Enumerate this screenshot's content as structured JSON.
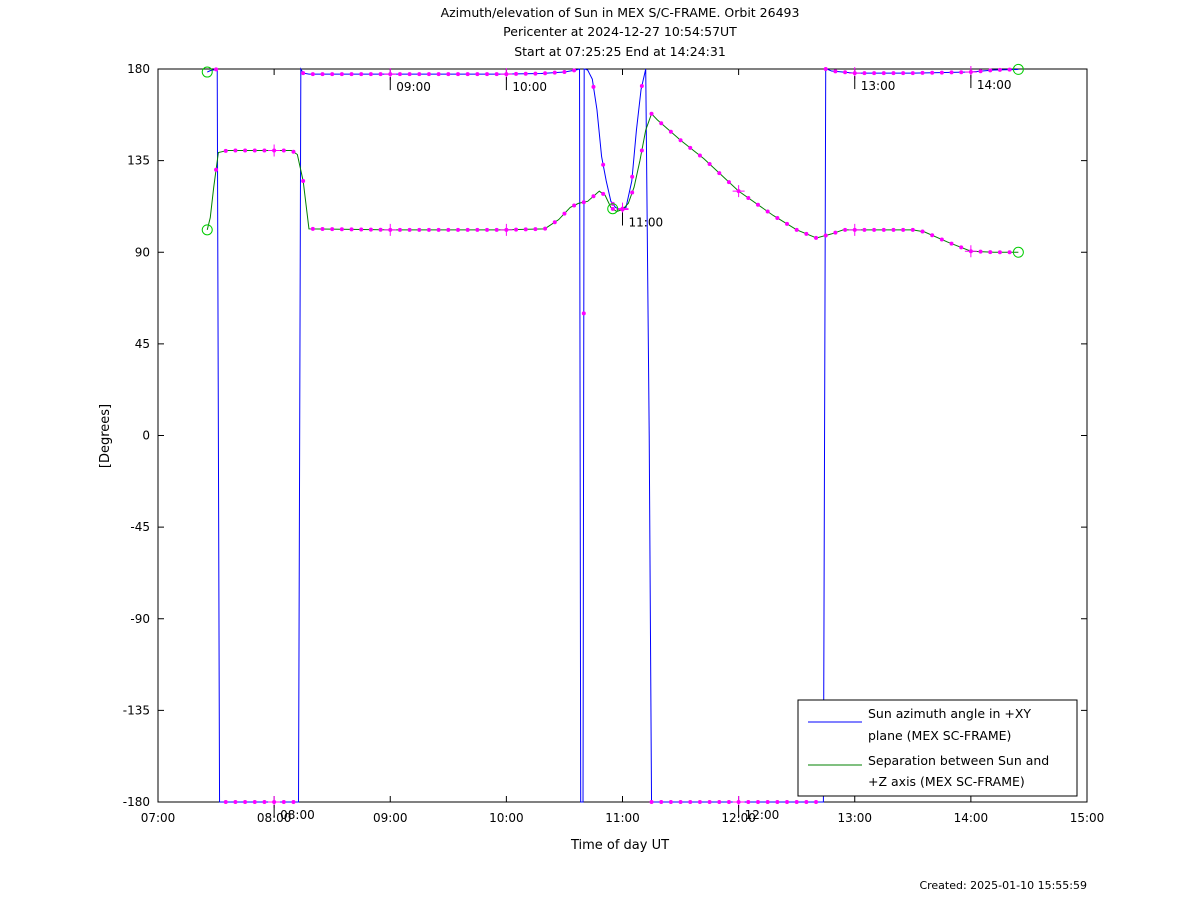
{
  "chart_data": {
    "type": "line",
    "title_lines": [
      "Azimuth/elevation of Sun in MEX S/C-FRAME.  Orbit 26493",
      "Pericenter at 2024-12-27 10:54:57UT",
      "Start at 07:25:25 End at 14:24:31"
    ],
    "xlabel": "Time of day UT",
    "ylabel": "[Degrees]",
    "xlim": [
      7.0,
      15.0
    ],
    "ylim": [
      -180,
      180
    ],
    "x_ticks": [
      7,
      8,
      9,
      10,
      11,
      12,
      13,
      14,
      15
    ],
    "x_tick_labels": [
      "07:00",
      "08:00",
      "09:00",
      "10:00",
      "11:00",
      "12:00",
      "13:00",
      "14:00",
      "15:00"
    ],
    "y_ticks": [
      180,
      135,
      90,
      45,
      0,
      -45,
      -90,
      -135,
      -180
    ],
    "y_tick_labels": [
      "180",
      "135",
      "90",
      "45",
      "0",
      "-45",
      "-90",
      "-135",
      "-180"
    ],
    "grid": false,
    "legend_position": "bottom-right",
    "series": [
      {
        "name": "Sun azimuth angle in +XY plane (MEX SC-FRAME)",
        "legend_lines": [
          "Sun azimuth angle in +XY",
          "plane (MEX SC-FRAME)"
        ],
        "color": "#0000ff",
        "x": [
          7.424,
          7.45,
          7.5,
          7.51,
          7.52,
          7.53,
          8.0,
          8.2,
          8.21,
          8.22,
          8.23,
          8.25,
          8.3,
          9.0,
          10.0,
          10.3,
          10.5,
          10.6,
          10.63,
          10.64,
          10.645,
          10.655,
          10.66,
          10.67,
          10.675,
          10.7,
          10.74,
          10.78,
          10.82,
          10.86,
          10.9,
          10.94,
          10.98,
          11.03,
          11.08,
          11.12,
          11.16,
          11.2,
          11.23,
          11.25,
          11.255,
          11.26,
          11.27,
          11.28,
          11.3,
          11.5,
          12.0,
          12.5,
          12.73,
          12.74,
          12.75,
          12.76,
          12.8,
          13.0,
          13.5,
          14.0,
          14.2,
          14.409
        ],
        "y": [
          178.5,
          179.2,
          179.8,
          180,
          0,
          -180,
          -180,
          -180,
          -180,
          0,
          180,
          178,
          177.5,
          177.5,
          177.5,
          177.8,
          178.5,
          179.5,
          180,
          -180,
          -180,
          -180,
          -180,
          180,
          180,
          179.5,
          175,
          160,
          137,
          125,
          115,
          112,
          111,
          112,
          125,
          150,
          170,
          180,
          0,
          -180,
          -180,
          -180,
          -180,
          -180,
          -180,
          -180,
          -180,
          -180,
          -180,
          0,
          180,
          180,
          179,
          178,
          178,
          178.5,
          179.5,
          179.8
        ]
      },
      {
        "name": "Separation between Sun and +Z axis (MEX SC-FRAME)",
        "legend_lines": [
          "Separation between Sun and",
          "+Z axis (MEX SC-FRAME)"
        ],
        "color": "#008000",
        "x": [
          7.424,
          7.45,
          7.48,
          7.52,
          7.6,
          7.8,
          8.0,
          8.15,
          8.2,
          8.25,
          8.3,
          9.0,
          10.0,
          10.33,
          10.45,
          10.55,
          10.62,
          10.7,
          10.8,
          10.85,
          10.9,
          10.95,
          11.0,
          11.05,
          11.1,
          11.15,
          11.2,
          11.25,
          11.3,
          11.5,
          11.7,
          12.0,
          12.3,
          12.5,
          12.67,
          12.8,
          12.9,
          13.0,
          13.5,
          13.6,
          13.8,
          14.0,
          14.2,
          14.409
        ],
        "y": [
          101,
          107,
          122,
          139,
          140,
          140,
          140,
          140,
          138,
          125,
          101.5,
          101,
          101,
          101.5,
          106,
          112,
          114,
          115,
          120,
          118,
          112,
          110,
          111,
          114,
          122,
          135,
          150,
          158,
          155,
          145,
          136,
          120,
          108,
          101,
          97,
          99,
          101,
          101,
          101,
          100,
          95,
          90.5,
          90,
          90
        ]
      }
    ],
    "time_annotations": [
      {
        "x": 8.0,
        "label": "08:00",
        "series": 0
      },
      {
        "x": 9.0,
        "label": "09:00",
        "series": 0
      },
      {
        "x": 10.0,
        "label": "10:00",
        "series": 0
      },
      {
        "x": 11.0,
        "label": "11:00",
        "series": 1
      },
      {
        "x": 12.0,
        "label": "12:00",
        "series": 0
      },
      {
        "x": 13.0,
        "label": "13:00",
        "series": 0
      },
      {
        "x": 14.0,
        "label": "14:00",
        "series": 0
      }
    ]
  },
  "footer": {
    "created": "Created: 2025-01-10 15:55:59"
  }
}
